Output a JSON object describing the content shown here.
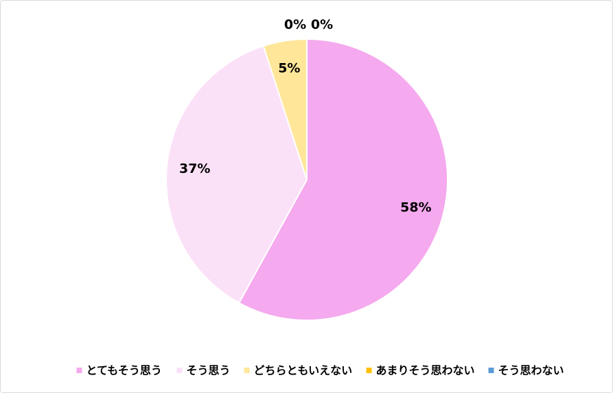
{
  "chart_data": {
    "type": "pie",
    "categories": [
      "とてもそう思う",
      "そう思う",
      "どちらともいえない",
      "あまりそう思わない",
      "そう思わない"
    ],
    "values": [
      58,
      37,
      5,
      0,
      0
    ],
    "value_labels": [
      "58%",
      "37%",
      "5%",
      "0%",
      "0%"
    ],
    "colors": [
      "#f5a9ee",
      "#fbe1f7",
      "#ffe699",
      "#ffc000",
      "#5b9bd5"
    ],
    "legend": "bottom"
  }
}
